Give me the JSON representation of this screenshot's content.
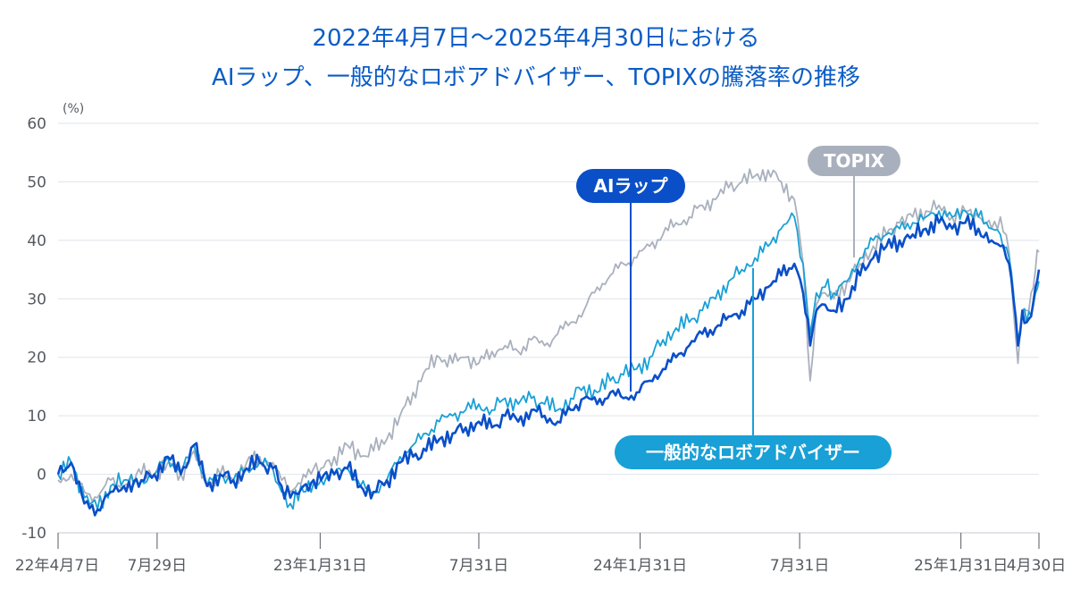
{
  "title_line1": "2022年4月7日～2025年4月30日における",
  "title_line2": "AIラップ、一般的なロボアドバイザー、TOPIXの騰落率の推移",
  "colors": {
    "ai_wrap": "#0a4fc8",
    "robo": "#19a0d6",
    "topix": "#a9b0bd",
    "title": "#0a5cc6",
    "grid": "#dfe3e8"
  },
  "chart_data": {
    "type": "line",
    "ylabel": "(%)",
    "ylim": [
      -10,
      60
    ],
    "yticks": [
      -10,
      0,
      10,
      20,
      30,
      40,
      50,
      60
    ],
    "x_range_days": [
      0,
      1119
    ],
    "xticks": [
      {
        "day": 0,
        "label": "22年4月7日"
      },
      {
        "day": 113,
        "label": "7月29日"
      },
      {
        "day": 299,
        "label": "23年1月31日"
      },
      {
        "day": 480,
        "label": "7月31日"
      },
      {
        "day": 664,
        "label": "24年1月31日"
      },
      {
        "day": 846,
        "label": "7月31日"
      },
      {
        "day": 1030,
        "label": "25年1月31日"
      },
      {
        "day": 1119,
        "label": "4月30日"
      }
    ],
    "series": [
      {
        "name": "AIラップ",
        "key": "ai_wrap",
        "points": [
          [
            0,
            0
          ],
          [
            15,
            2
          ],
          [
            30,
            -5
          ],
          [
            45,
            -6
          ],
          [
            60,
            -3
          ],
          [
            75,
            -2
          ],
          [
            95,
            -1
          ],
          [
            110,
            0
          ],
          [
            125,
            3
          ],
          [
            140,
            0
          ],
          [
            155,
            5
          ],
          [
            170,
            -2
          ],
          [
            185,
            0
          ],
          [
            200,
            -1
          ],
          [
            215,
            1
          ],
          [
            230,
            2
          ],
          [
            245,
            1
          ],
          [
            255,
            -2
          ],
          [
            265,
            -4
          ],
          [
            280,
            -2
          ],
          [
            300,
            -1
          ],
          [
            315,
            0
          ],
          [
            330,
            1
          ],
          [
            345,
            -2
          ],
          [
            360,
            -3
          ],
          [
            375,
            -1
          ],
          [
            390,
            2
          ],
          [
            405,
            3
          ],
          [
            420,
            4
          ],
          [
            435,
            6
          ],
          [
            450,
            7
          ],
          [
            465,
            8
          ],
          [
            480,
            9
          ],
          [
            495,
            8
          ],
          [
            510,
            10
          ],
          [
            525,
            9
          ],
          [
            540,
            11
          ],
          [
            555,
            10
          ],
          [
            570,
            9
          ],
          [
            585,
            11
          ],
          [
            600,
            13
          ],
          [
            615,
            12
          ],
          [
            630,
            14
          ],
          [
            645,
            13
          ],
          [
            660,
            14
          ],
          [
            675,
            16
          ],
          [
            690,
            18
          ],
          [
            705,
            20
          ],
          [
            720,
            22
          ],
          [
            735,
            24
          ],
          [
            750,
            25
          ],
          [
            765,
            27
          ],
          [
            780,
            28
          ],
          [
            795,
            30
          ],
          [
            810,
            32
          ],
          [
            825,
            34
          ],
          [
            840,
            36
          ],
          [
            850,
            31
          ],
          [
            858,
            22
          ],
          [
            865,
            28
          ],
          [
            875,
            29
          ],
          [
            885,
            28
          ],
          [
            900,
            30
          ],
          [
            915,
            34
          ],
          [
            930,
            37
          ],
          [
            945,
            39
          ],
          [
            960,
            40
          ],
          [
            975,
            41
          ],
          [
            990,
            42
          ],
          [
            1005,
            43
          ],
          [
            1020,
            42
          ],
          [
            1035,
            43
          ],
          [
            1050,
            42
          ],
          [
            1065,
            40
          ],
          [
            1075,
            39
          ],
          [
            1085,
            36
          ],
          [
            1090,
            30
          ],
          [
            1095,
            22
          ],
          [
            1100,
            28
          ],
          [
            1105,
            26
          ],
          [
            1110,
            27
          ],
          [
            1115,
            32
          ],
          [
            1119,
            35
          ]
        ]
      },
      {
        "name": "一般的なロボアドバイザー",
        "key": "robo",
        "points": [
          [
            0,
            0
          ],
          [
            15,
            2
          ],
          [
            30,
            -4
          ],
          [
            45,
            -6
          ],
          [
            60,
            -2
          ],
          [
            75,
            -1
          ],
          [
            95,
            -1
          ],
          [
            110,
            0
          ],
          [
            125,
            3
          ],
          [
            140,
            0
          ],
          [
            155,
            5
          ],
          [
            170,
            -2
          ],
          [
            185,
            0
          ],
          [
            200,
            -1
          ],
          [
            215,
            1
          ],
          [
            230,
            2
          ],
          [
            245,
            1
          ],
          [
            255,
            -3
          ],
          [
            265,
            -5
          ],
          [
            280,
            -3
          ],
          [
            300,
            -1
          ],
          [
            315,
            0
          ],
          [
            330,
            1
          ],
          [
            345,
            -2
          ],
          [
            360,
            -3
          ],
          [
            375,
            -1
          ],
          [
            390,
            3
          ],
          [
            405,
            5
          ],
          [
            420,
            7
          ],
          [
            435,
            9
          ],
          [
            450,
            10
          ],
          [
            465,
            11
          ],
          [
            480,
            12
          ],
          [
            495,
            11
          ],
          [
            510,
            13
          ],
          [
            525,
            12
          ],
          [
            540,
            13
          ],
          [
            555,
            12
          ],
          [
            570,
            11
          ],
          [
            585,
            13
          ],
          [
            600,
            15
          ],
          [
            615,
            14
          ],
          [
            630,
            16
          ],
          [
            645,
            17
          ],
          [
            660,
            18
          ],
          [
            675,
            20
          ],
          [
            690,
            23
          ],
          [
            705,
            25
          ],
          [
            720,
            26
          ],
          [
            735,
            28
          ],
          [
            750,
            30
          ],
          [
            765,
            33
          ],
          [
            780,
            35
          ],
          [
            795,
            37
          ],
          [
            810,
            39
          ],
          [
            825,
            42
          ],
          [
            840,
            44
          ],
          [
            850,
            36
          ],
          [
            858,
            24
          ],
          [
            865,
            31
          ],
          [
            875,
            32
          ],
          [
            885,
            31
          ],
          [
            900,
            33
          ],
          [
            915,
            37
          ],
          [
            930,
            40
          ],
          [
            945,
            41
          ],
          [
            960,
            42
          ],
          [
            975,
            43
          ],
          [
            990,
            44
          ],
          [
            1005,
            45
          ],
          [
            1020,
            44
          ],
          [
            1035,
            45
          ],
          [
            1050,
            44
          ],
          [
            1065,
            42
          ],
          [
            1075,
            41
          ],
          [
            1085,
            37
          ],
          [
            1090,
            31
          ],
          [
            1095,
            23
          ],
          [
            1100,
            28
          ],
          [
            1105,
            26
          ],
          [
            1110,
            27
          ],
          [
            1115,
            31
          ],
          [
            1119,
            33
          ]
        ]
      },
      {
        "name": "TOPIX",
        "key": "topix",
        "points": [
          [
            0,
            -1
          ],
          [
            15,
            0
          ],
          [
            30,
            -3
          ],
          [
            45,
            -4
          ],
          [
            60,
            -1
          ],
          [
            75,
            -2
          ],
          [
            95,
            0
          ],
          [
            110,
            0
          ],
          [
            125,
            2
          ],
          [
            140,
            0
          ],
          [
            155,
            4
          ],
          [
            170,
            -2
          ],
          [
            185,
            0
          ],
          [
            200,
            -1
          ],
          [
            215,
            2
          ],
          [
            230,
            3
          ],
          [
            245,
            2
          ],
          [
            255,
            -1
          ],
          [
            265,
            -3
          ],
          [
            280,
            0
          ],
          [
            300,
            1
          ],
          [
            315,
            3
          ],
          [
            330,
            5
          ],
          [
            345,
            3
          ],
          [
            360,
            4
          ],
          [
            375,
            6
          ],
          [
            390,
            10
          ],
          [
            405,
            14
          ],
          [
            420,
            18
          ],
          [
            435,
            20
          ],
          [
            450,
            19
          ],
          [
            465,
            20
          ],
          [
            480,
            19
          ],
          [
            495,
            21
          ],
          [
            510,
            22
          ],
          [
            525,
            21
          ],
          [
            540,
            23
          ],
          [
            555,
            22
          ],
          [
            570,
            24
          ],
          [
            585,
            26
          ],
          [
            600,
            28
          ],
          [
            615,
            32
          ],
          [
            630,
            34
          ],
          [
            645,
            36
          ],
          [
            660,
            37
          ],
          [
            675,
            39
          ],
          [
            690,
            41
          ],
          [
            705,
            43
          ],
          [
            720,
            44
          ],
          [
            735,
            46
          ],
          [
            750,
            47
          ],
          [
            765,
            49
          ],
          [
            780,
            50
          ],
          [
            795,
            51
          ],
          [
            810,
            52
          ],
          [
            825,
            50
          ],
          [
            840,
            47
          ],
          [
            850,
            36
          ],
          [
            858,
            16
          ],
          [
            865,
            29
          ],
          [
            875,
            31
          ],
          [
            885,
            30
          ],
          [
            900,
            33
          ],
          [
            915,
            36
          ],
          [
            930,
            39
          ],
          [
            945,
            41
          ],
          [
            960,
            43
          ],
          [
            975,
            44
          ],
          [
            990,
            45
          ],
          [
            1005,
            46
          ],
          [
            1020,
            44
          ],
          [
            1035,
            45
          ],
          [
            1050,
            44
          ],
          [
            1065,
            42
          ],
          [
            1075,
            44
          ],
          [
            1085,
            38
          ],
          [
            1090,
            28
          ],
          [
            1095,
            19
          ],
          [
            1100,
            27
          ],
          [
            1105,
            28
          ],
          [
            1110,
            31
          ],
          [
            1115,
            35
          ],
          [
            1119,
            38
          ]
        ]
      }
    ],
    "legend_labels": [
      {
        "key": "ai_wrap",
        "text": "AIラップ"
      },
      {
        "key": "robo",
        "text": "一般的なロボアドバイザー"
      },
      {
        "key": "topix",
        "text": "TOPIX"
      }
    ]
  }
}
